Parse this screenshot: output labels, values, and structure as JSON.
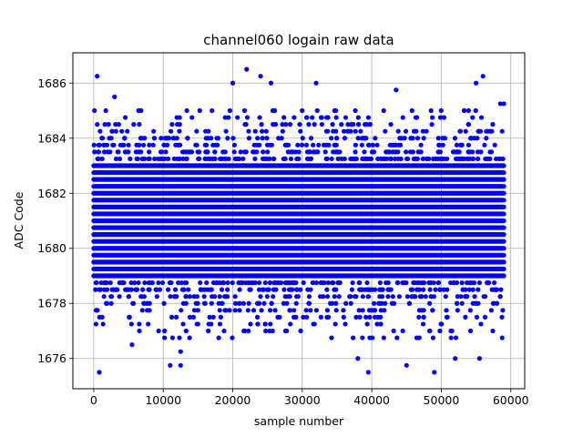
{
  "chart_data": {
    "type": "scatter",
    "title": "channel060 logain raw data",
    "xlabel": "sample number",
    "ylabel": "ADC Code",
    "xlim": [
      -3000,
      62000
    ],
    "ylim": [
      1674.9,
      1687.1
    ],
    "x_ticks": [
      0,
      10000,
      20000,
      30000,
      40000,
      50000,
      60000
    ],
    "y_ticks": [
      1676,
      1678,
      1680,
      1682,
      1684,
      1686
    ],
    "grid": true,
    "marker_color": "#0000ff",
    "x_range_of_samples": [
      0,
      59000
    ],
    "level_step": 0.25,
    "dense_band": [
      1679.0,
      1683.0
    ],
    "points": [
      {
        "x": 500,
        "y": 1686.25
      },
      {
        "x": 800,
        "y": 1675.5
      },
      {
        "x": 3000,
        "y": 1685.5
      },
      {
        "x": 5500,
        "y": 1676.5
      },
      {
        "x": 11000,
        "y": 1675.75
      },
      {
        "x": 12500,
        "y": 1675.75
      },
      {
        "x": 12500,
        "y": 1676.25
      },
      {
        "x": 20000,
        "y": 1686.0
      },
      {
        "x": 22000,
        "y": 1686.5
      },
      {
        "x": 24000,
        "y": 1686.25
      },
      {
        "x": 25500,
        "y": 1686.0
      },
      {
        "x": 32000,
        "y": 1686.0
      },
      {
        "x": 38000,
        "y": 1676.0
      },
      {
        "x": 39500,
        "y": 1675.5
      },
      {
        "x": 43500,
        "y": 1685.75
      },
      {
        "x": 45000,
        "y": 1675.75
      },
      {
        "x": 49000,
        "y": 1675.5
      },
      {
        "x": 52000,
        "y": 1676.0
      },
      {
        "x": 55000,
        "y": 1686.0
      },
      {
        "x": 55500,
        "y": 1676.0
      },
      {
        "x": 56000,
        "y": 1686.25
      },
      {
        "x": 58500,
        "y": 1685.25
      },
      {
        "x": 59000,
        "y": 1685.25
      }
    ]
  }
}
